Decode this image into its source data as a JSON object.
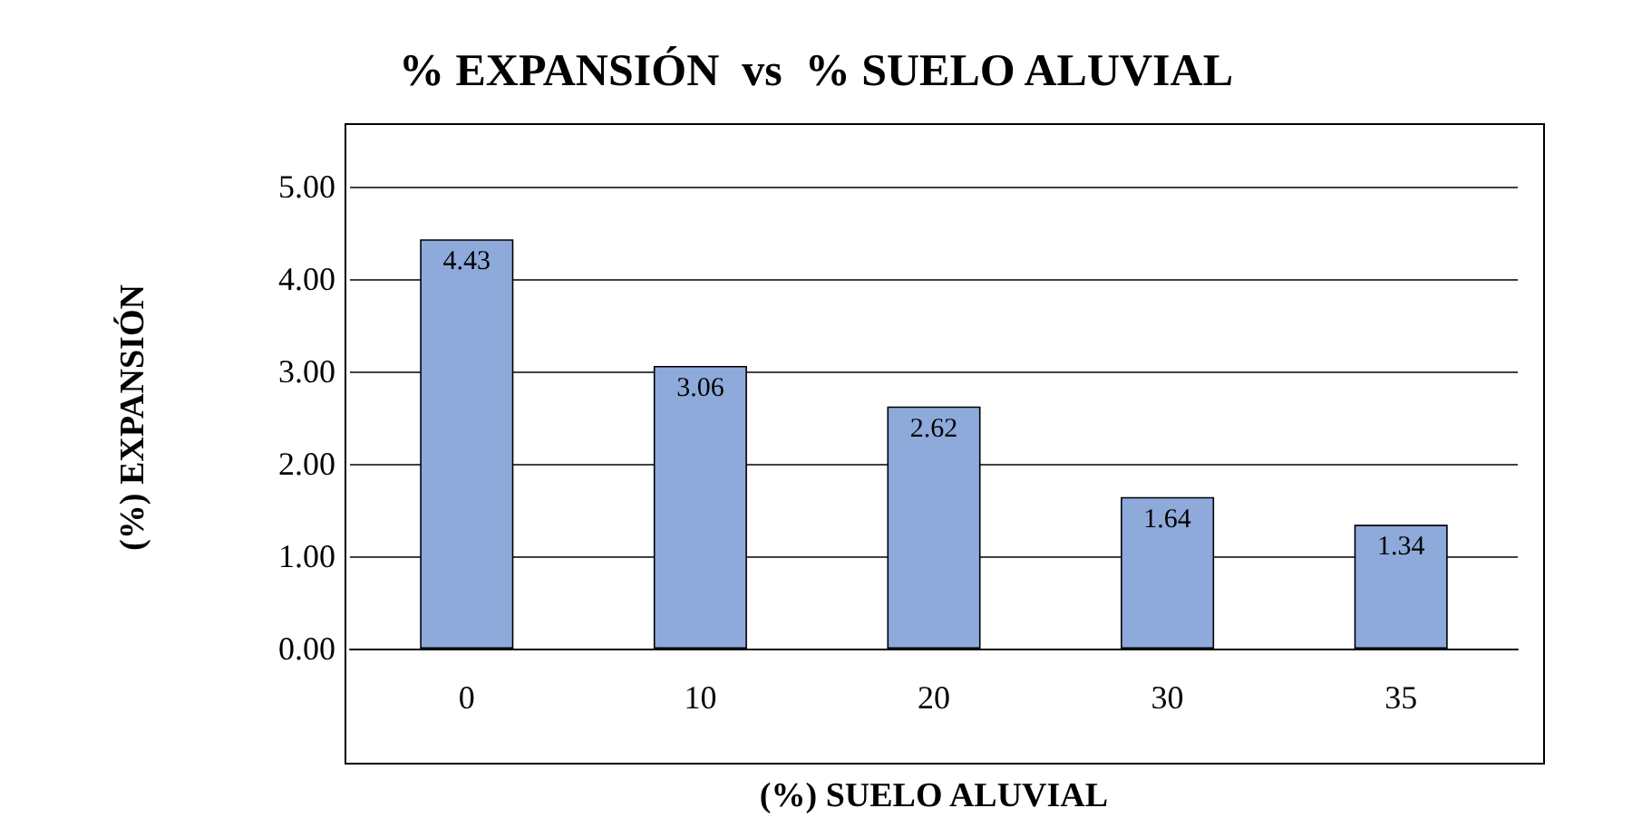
{
  "chart_data": {
    "type": "bar",
    "title": "% EXPANSIÓN  vs  % SUELO ALUVIAL",
    "xlabel": "(%) SUELO ALUVIAL",
    "ylabel": "(%) EXPANSIÓN",
    "categories": [
      "0",
      "10",
      "20",
      "30",
      "35"
    ],
    "values": [
      4.43,
      3.06,
      2.62,
      1.64,
      1.34
    ],
    "color": "#8eaadb",
    "ylim": [
      0,
      5
    ],
    "yticks": [
      {
        "value": 0,
        "label": "0.00"
      },
      {
        "value": 1,
        "label": "1.00"
      },
      {
        "value": 2,
        "label": "2.00"
      },
      {
        "value": 3,
        "label": "3.00"
      },
      {
        "value": 4,
        "label": "4.00"
      },
      {
        "value": 5,
        "label": "5.00"
      }
    ],
    "grid": "y",
    "data_labels": true
  }
}
